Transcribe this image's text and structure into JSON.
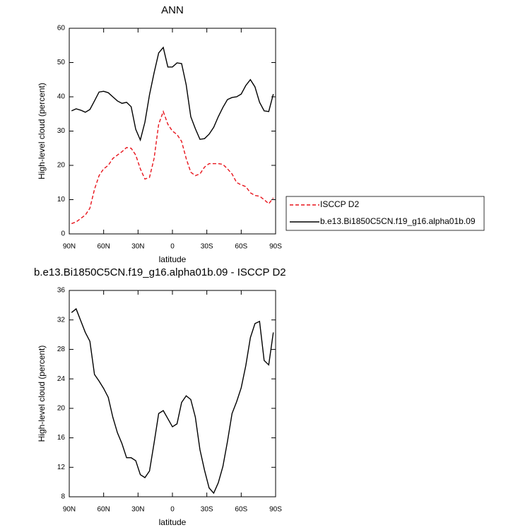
{
  "chart_data": [
    {
      "type": "line",
      "title": "ANN",
      "ylabel": "High-level cloud (percent)",
      "xlabel": "latitude",
      "x": [
        88,
        84,
        80,
        76,
        72,
        68,
        64,
        60,
        56,
        52,
        48,
        44,
        40,
        36,
        32,
        28,
        24,
        20,
        16,
        12,
        8,
        4,
        0,
        -4,
        -8,
        -12,
        -16,
        -20,
        -24,
        -28,
        -32,
        -36,
        -40,
        -44,
        -48,
        -52,
        -56,
        -60,
        -64,
        -68,
        -72,
        -76,
        -80,
        -84,
        -88
      ],
      "series": [
        {
          "name": "ISCCP D2",
          "color": "#e8141c",
          "dashed": true,
          "values": [
            3,
            3.5,
            4.5,
            5.5,
            7.5,
            13,
            17,
            19,
            20,
            22,
            23,
            24,
            25.2,
            25,
            23,
            19,
            16,
            16.5,
            22,
            32,
            35.7,
            32,
            30,
            29,
            27,
            22,
            18,
            17,
            17.5,
            19.5,
            20.5,
            20.5,
            20.5,
            20.3,
            19,
            17.5,
            15,
            14.3,
            13.8,
            12,
            11.2,
            11,
            10,
            8.8,
            10.5
          ]
        },
        {
          "name": "b.e13.Bi1850C5CN.f19_g16.alpha01b.09",
          "color": "#000000",
          "dashed": false,
          "values": [
            35.9,
            36.5,
            36.1,
            35.5,
            36.3,
            38.8,
            41.4,
            41.6,
            41.2,
            40,
            38.8,
            38.1,
            38.4,
            37.1,
            30.5,
            27.4,
            32.6,
            40.6,
            47,
            52.8,
            54.4,
            48.7,
            48.7,
            49.9,
            49.7,
            43.5,
            34.2,
            30.7,
            27.6,
            27.8,
            29.1,
            31.1,
            34.2,
            36.9,
            39.2,
            39.8,
            40,
            40.8,
            43.3,
            45,
            42.9,
            38.4,
            35.9,
            35.7,
            40.8
          ]
        }
      ],
      "xlim": [
        90,
        -90
      ],
      "xticks": [
        {
          "value": 90,
          "label": "90N"
        },
        {
          "value": 60,
          "label": "60N"
        },
        {
          "value": 30,
          "label": "30N"
        },
        0,
        {
          "value": -30,
          "label": "30S"
        },
        {
          "value": -60,
          "label": "60S"
        },
        {
          "value": -90,
          "label": "90S"
        }
      ],
      "ylim": [
        0,
        60
      ],
      "yticks": [
        0,
        10,
        20,
        30,
        40,
        50,
        60
      ],
      "legend": "outside-right"
    },
    {
      "type": "line",
      "title": "b.e13.Bi1850C5CN.f19_g16.alpha01b.09 - ISCCP D2",
      "ylabel": "High-level cloud (percent)",
      "xlabel": "latitude",
      "x": [
        88,
        84,
        80,
        76,
        72,
        68,
        64,
        60,
        56,
        52,
        48,
        44,
        40,
        36,
        32,
        28,
        24,
        20,
        16,
        12,
        8,
        4,
        0,
        -4,
        -8,
        -12,
        -16,
        -20,
        -24,
        -28,
        -32,
        -36,
        -40,
        -44,
        -48,
        -52,
        -56,
        -60,
        -64,
        -68,
        -72,
        -76,
        -80,
        -84,
        -88
      ],
      "series": [
        {
          "color": "#000000",
          "dashed": false,
          "values": [
            33.0,
            33.5,
            31.9,
            30.3,
            29.1,
            24.6,
            23.7,
            22.7,
            21.5,
            18.8,
            16.7,
            15.2,
            13.3,
            13.3,
            12.9,
            11.0,
            10.6,
            11.5,
            15.3,
            19.3,
            19.7,
            18.6,
            17.5,
            17.9,
            20.8,
            21.7,
            21.2,
            18.8,
            14.4,
            11.6,
            9.2,
            8.5,
            9.9,
            12.1,
            15.5,
            19.3,
            20.9,
            22.8,
            25.8,
            29.6,
            31.5,
            31.8,
            26.5,
            25.9,
            30.3
          ]
        }
      ],
      "xlim": [
        90,
        -90
      ],
      "xticks": [
        {
          "value": 90,
          "label": "90N"
        },
        {
          "value": 60,
          "label": "60N"
        },
        {
          "value": 30,
          "label": "30N"
        },
        0,
        {
          "value": -30,
          "label": "30S"
        },
        {
          "value": -60,
          "label": "60S"
        },
        {
          "value": -90,
          "label": "90S"
        }
      ],
      "ylim": [
        8,
        36
      ],
      "yticks": [
        8,
        12,
        16,
        20,
        24,
        28,
        32,
        36
      ]
    }
  ]
}
